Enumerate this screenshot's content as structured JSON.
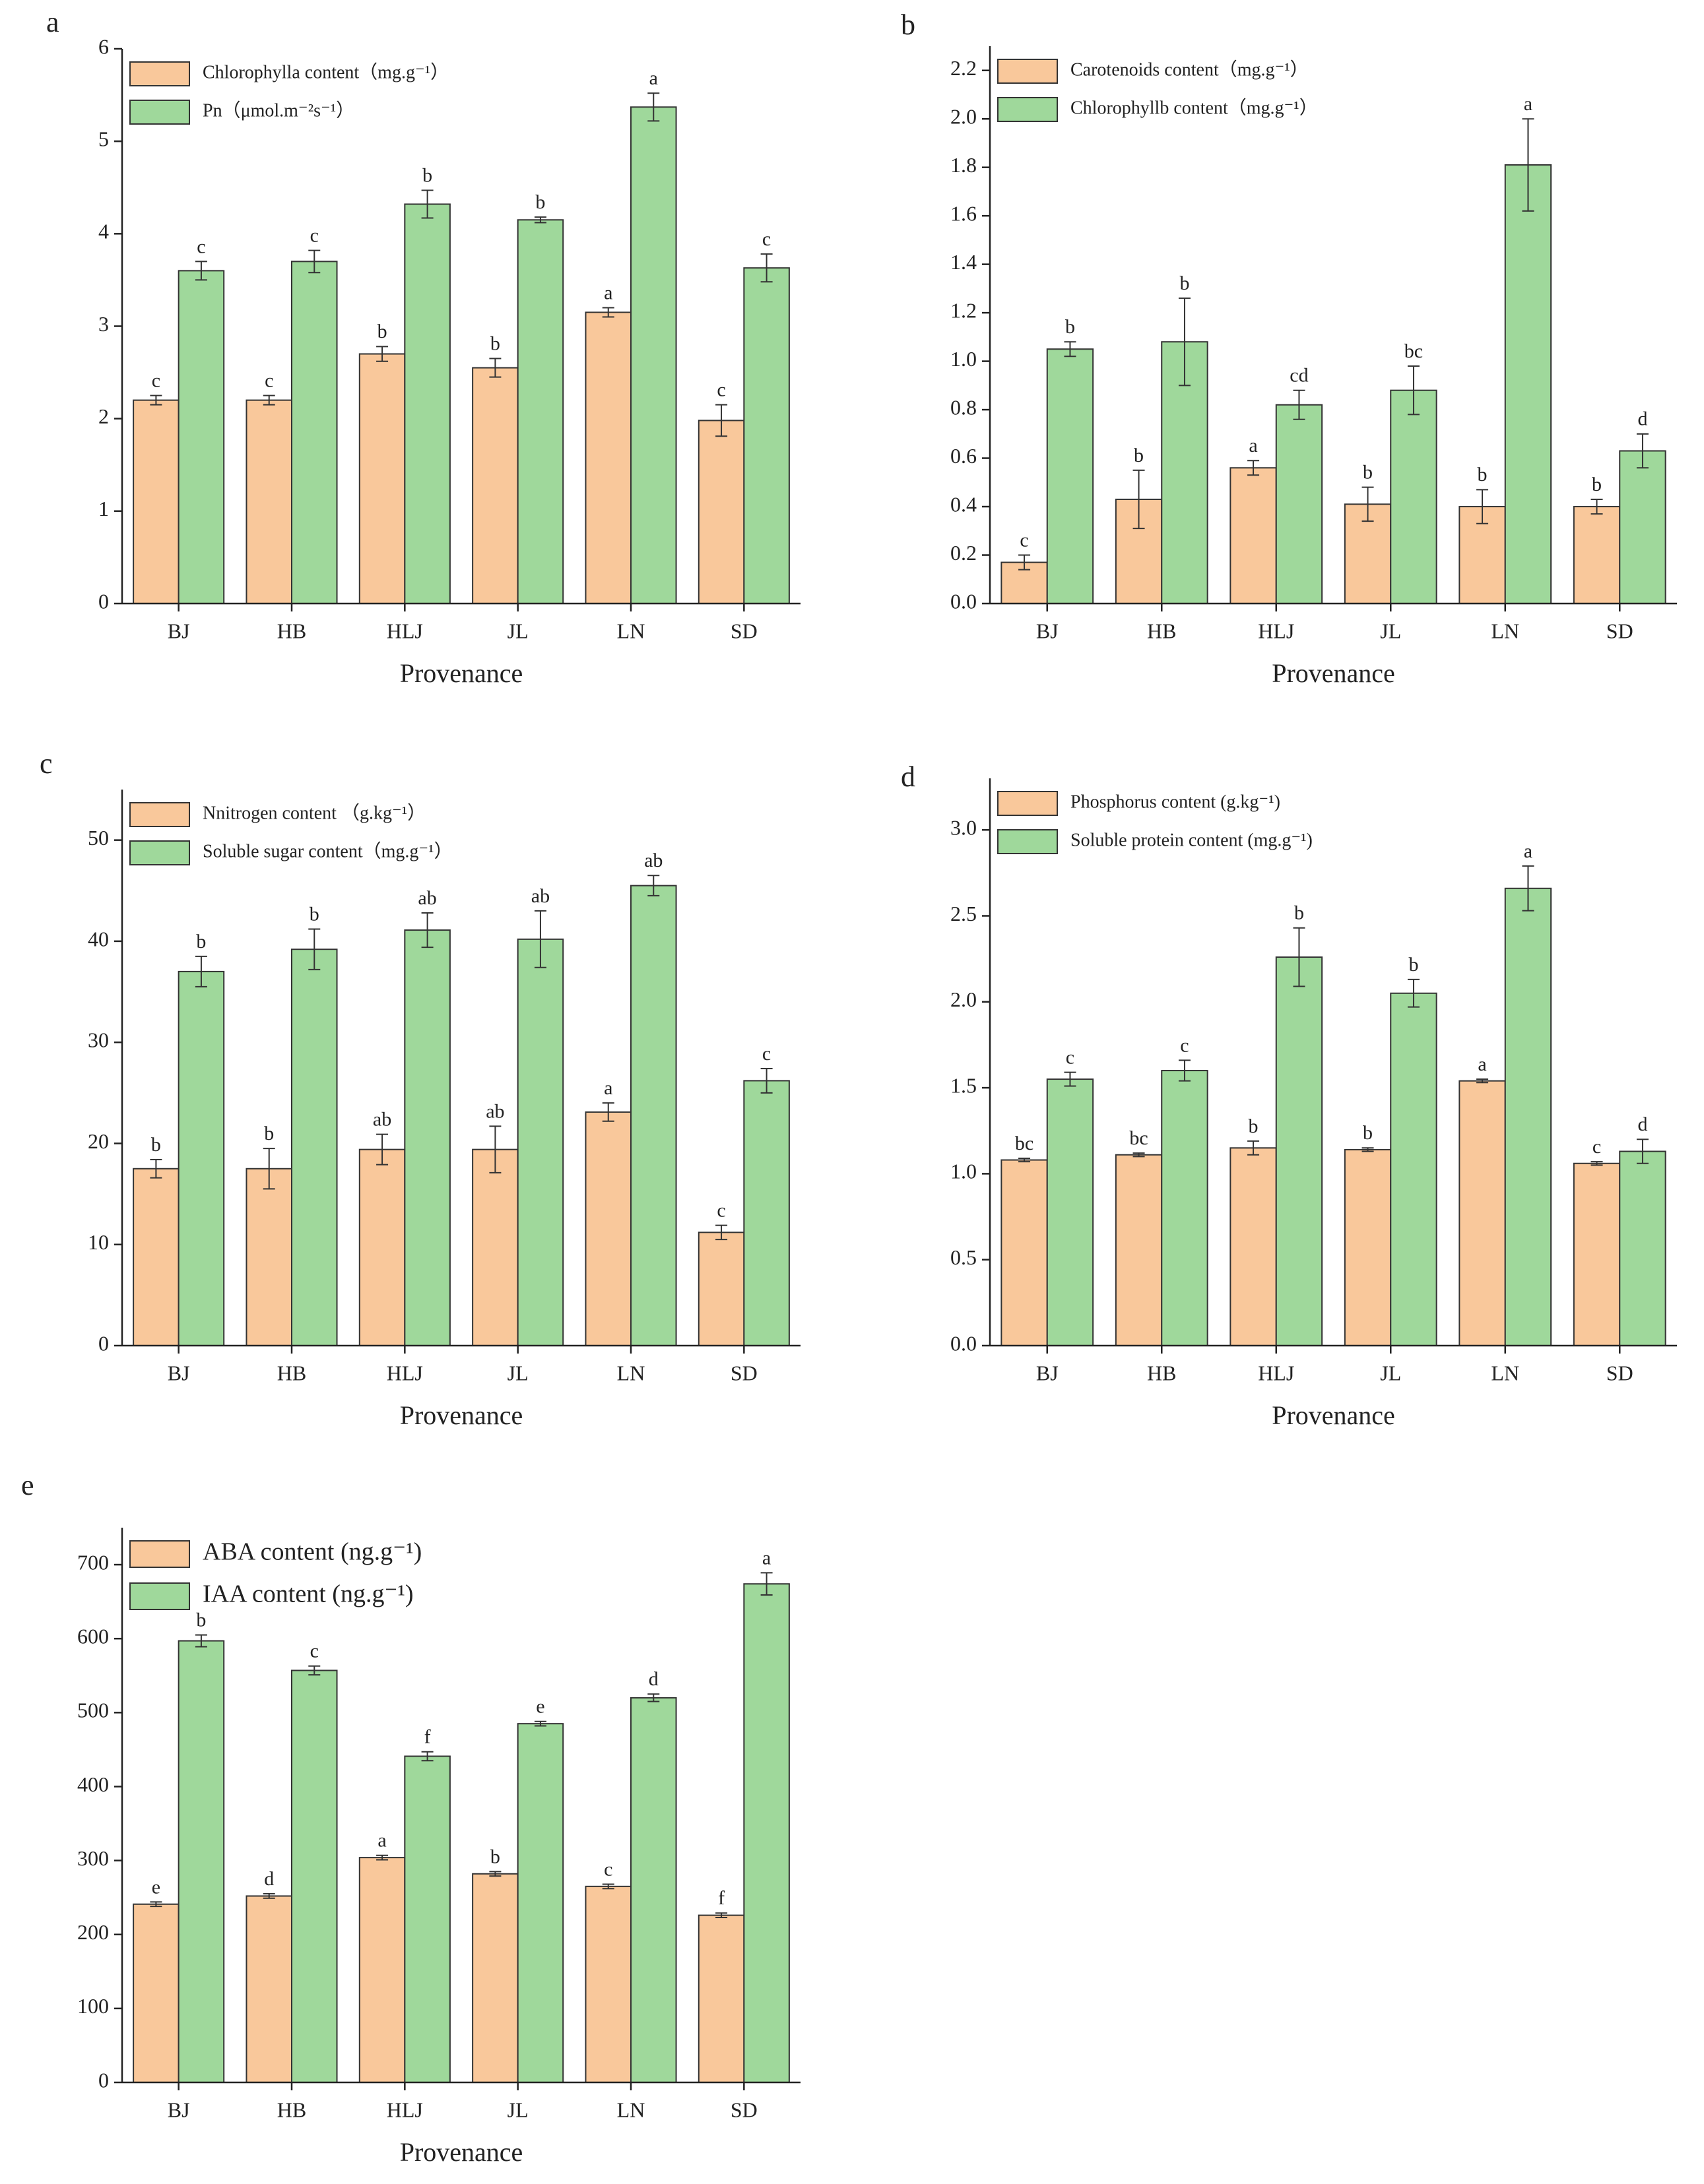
{
  "chart_data": [
    {
      "type": "bar",
      "panel_label": "a",
      "xlabel": "Provenance",
      "categories": [
        "BJ",
        "HB",
        "HLJ",
        "JL",
        "LN",
        "SD"
      ],
      "ylim": [
        0,
        6
      ],
      "yticks": [
        0,
        1,
        2,
        3,
        4,
        5,
        6
      ],
      "series": [
        {
          "name": "Chlorophylla content（mg.g⁻¹）",
          "color": "#f9c89b",
          "values": [
            2.2,
            2.2,
            2.7,
            2.55,
            3.15,
            1.98
          ],
          "errors": [
            0.05,
            0.05,
            0.08,
            0.1,
            0.05,
            0.17
          ],
          "letters": [
            "c",
            "c",
            "b",
            "b",
            "a",
            "c"
          ]
        },
        {
          "name": "Pn（μmol.m⁻²s⁻¹）",
          "color": "#9fd89b",
          "values": [
            3.6,
            3.7,
            4.32,
            4.15,
            5.37,
            3.63
          ],
          "errors": [
            0.1,
            0.12,
            0.15,
            0.03,
            0.15,
            0.15
          ],
          "letters": [
            "c",
            "c",
            "b",
            "b",
            "a",
            "c"
          ]
        }
      ]
    },
    {
      "type": "bar",
      "panel_label": "b",
      "xlabel": "Provenance",
      "categories": [
        "BJ",
        "HB",
        "HLJ",
        "JL",
        "LN",
        "SD"
      ],
      "ylim": [
        0,
        2.3
      ],
      "yticks": [
        {
          "value": 0,
          "label": "0.0"
        },
        0.2,
        0.4,
        0.6,
        0.8,
        {
          "value": 1,
          "label": "1.0"
        },
        1.2,
        1.4,
        1.6,
        1.8,
        {
          "value": 2,
          "label": "2.0"
        },
        2.2
      ],
      "series": [
        {
          "name": "Carotenoids content（mg.g⁻¹）",
          "color": "#f9c89b",
          "values": [
            0.17,
            0.43,
            0.56,
            0.41,
            0.4,
            0.4
          ],
          "errors": [
            0.03,
            0.12,
            0.03,
            0.07,
            0.07,
            0.03
          ],
          "letters": [
            "c",
            "b",
            "a",
            "b",
            "b",
            "b"
          ]
        },
        {
          "name": "Chlorophyllb content（mg.g⁻¹）",
          "color": "#9fd89b",
          "values": [
            1.05,
            1.08,
            0.82,
            0.88,
            1.81,
            0.63
          ],
          "errors": [
            0.03,
            0.18,
            0.06,
            0.1,
            0.19,
            0.07
          ],
          "letters": [
            "b",
            "b",
            "cd",
            "bc",
            "a",
            "d"
          ]
        }
      ]
    },
    {
      "type": "bar",
      "panel_label": "c",
      "xlabel": "Provenance",
      "categories": [
        "BJ",
        "HB",
        "HLJ",
        "JL",
        "LN",
        "SD"
      ],
      "ylim": [
        0,
        55
      ],
      "yticks": [
        0,
        10,
        20,
        30,
        40,
        50
      ],
      "series": [
        {
          "name": "Nnitrogen content （g.kg⁻¹）",
          "color": "#f9c89b",
          "values": [
            17.5,
            17.5,
            19.4,
            19.4,
            23.1,
            11.2
          ],
          "errors": [
            0.9,
            2.0,
            1.5,
            2.3,
            0.9,
            0.7
          ],
          "letters": [
            "b",
            "b",
            "ab",
            "ab",
            "a",
            "c"
          ]
        },
        {
          "name": "Soluble sugar content（mg.g⁻¹）",
          "color": "#9fd89b",
          "values": [
            37,
            39.2,
            41.1,
            40.2,
            45.5,
            26.2
          ],
          "errors": [
            1.5,
            2,
            1.7,
            2.8,
            1,
            1.2
          ],
          "letters": [
            "b",
            "b",
            "ab",
            "ab",
            "ab",
            "c"
          ]
        }
      ]
    },
    {
      "type": "bar",
      "panel_label": "d",
      "xlabel": "Provenance",
      "categories": [
        "BJ",
        "HB",
        "HLJ",
        "JL",
        "LN",
        "SD"
      ],
      "ylim": [
        0,
        3.3
      ],
      "yticks": [
        {
          "value": 0,
          "label": "0.0"
        },
        0.5,
        {
          "value": 1,
          "label": "1.0"
        },
        1.5,
        {
          "value": 2,
          "label": "2.0"
        },
        2.5,
        {
          "value": 3,
          "label": "3.0"
        }
      ],
      "series": [
        {
          "name": "Phosphorus content (g.kg⁻¹)",
          "color": "#f9c89b",
          "values": [
            1.08,
            1.11,
            1.15,
            1.14,
            1.54,
            1.06
          ],
          "errors": [
            0.01,
            0.01,
            0.04,
            0.01,
            0.01,
            0.01
          ],
          "letters": [
            "bc",
            "bc",
            "b",
            "b",
            "a",
            "c"
          ]
        },
        {
          "name": "Soluble protein content (mg.g⁻¹)",
          "color": "#9fd89b",
          "values": [
            1.55,
            1.6,
            2.26,
            2.05,
            2.66,
            1.13
          ],
          "errors": [
            0.04,
            0.06,
            0.17,
            0.08,
            0.13,
            0.07
          ],
          "letters": [
            "c",
            "c",
            "b",
            "b",
            "a",
            "d"
          ]
        }
      ]
    },
    {
      "type": "bar",
      "panel_label": "e",
      "xlabel": "Provenance",
      "categories": [
        "BJ",
        "HB",
        "HLJ",
        "JL",
        "LN",
        "SD"
      ],
      "ylim": [
        0,
        750
      ],
      "yticks": [
        0,
        100,
        200,
        300,
        400,
        500,
        600,
        700
      ],
      "series": [
        {
          "name": "ABA content (ng.g⁻¹)",
          "color": "#f9c89b",
          "values": [
            241,
            252,
            304,
            282,
            265,
            226
          ],
          "errors": [
            3,
            3,
            3,
            3,
            3,
            3
          ],
          "letters": [
            "e",
            "d",
            "a",
            "b",
            "c",
            "f"
          ]
        },
        {
          "name": "IAA content (ng.g⁻¹)",
          "color": "#9fd89b",
          "values": [
            597,
            557,
            441,
            485,
            520,
            674
          ],
          "errors": [
            8,
            6,
            6,
            3,
            5,
            15
          ],
          "letters": [
            "b",
            "c",
            "f",
            "e",
            "d",
            "a"
          ]
        }
      ]
    }
  ]
}
